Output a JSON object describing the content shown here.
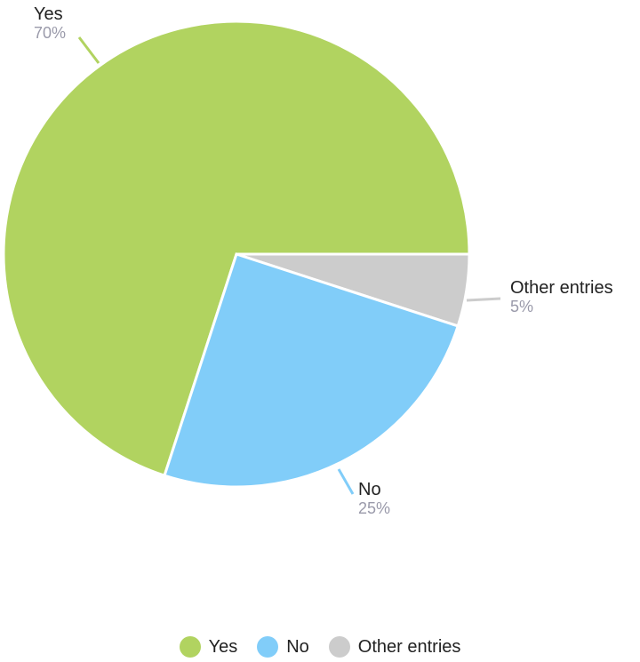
{
  "chart_data": {
    "type": "pie",
    "categories": [
      "Yes",
      "No",
      "Other entries"
    ],
    "values": [
      70,
      25,
      5
    ],
    "labels": [
      "70%",
      "25%",
      "5%"
    ],
    "colors": [
      "#b1d360",
      "#81cdf9",
      "#cccccc"
    ],
    "legend_position": "bottom-center"
  }
}
